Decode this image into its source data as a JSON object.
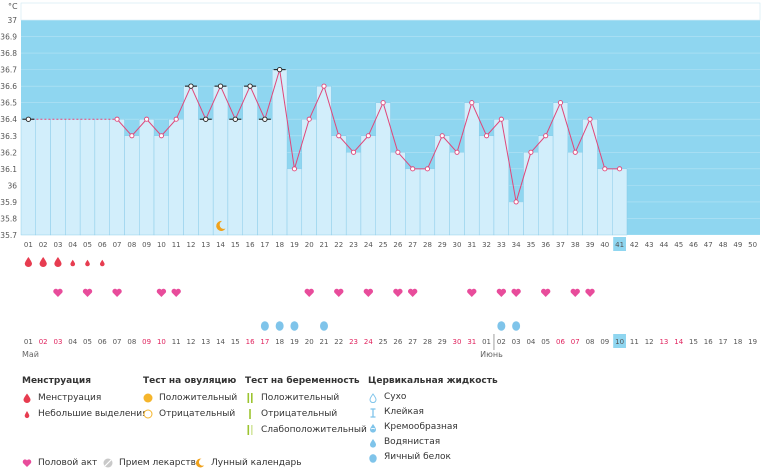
{
  "chart_data": {
    "type": "bar",
    "ylabel": "°C",
    "ylim": [
      35.7,
      37.0
    ],
    "y_ticks": [
      "35.7",
      "35.8",
      "35.9",
      "36",
      "36.1",
      "36.2",
      "36.3",
      "36.4",
      "36.5",
      "36.6",
      "36.7",
      "36.8",
      "36.9",
      "37"
    ],
    "cycle_days": [
      "01",
      "02",
      "03",
      "04",
      "05",
      "06",
      "07",
      "08",
      "09",
      "10",
      "11",
      "12",
      "13",
      "14",
      "15",
      "16",
      "17",
      "18",
      "19",
      "20",
      "21",
      "22",
      "23",
      "24",
      "25",
      "26",
      "27",
      "28",
      "29",
      "30",
      "31",
      "32",
      "33",
      "34",
      "35",
      "36",
      "37",
      "38",
      "39",
      "40",
      "41",
      "42",
      "43",
      "44",
      "45",
      "46",
      "47",
      "48",
      "49",
      "50"
    ],
    "current_cycle_day": "41",
    "temperatures": [
      36.4,
      null,
      null,
      null,
      null,
      null,
      36.4,
      36.3,
      36.4,
      36.3,
      36.4,
      36.6,
      36.4,
      36.6,
      36.4,
      36.6,
      36.4,
      36.7,
      36.1,
      36.4,
      36.6,
      36.3,
      36.2,
      36.3,
      36.5,
      36.2,
      36.1,
      36.1,
      36.3,
      36.2,
      36.5,
      36.3,
      36.4,
      35.9,
      36.2,
      36.3,
      36.5,
      36.2,
      36.4,
      36.1,
      36.1
    ],
    "cover_markers_days": [
      1,
      12,
      13,
      14,
      15,
      16,
      17,
      18
    ],
    "menstruation_days": [
      1,
      2,
      3
    ],
    "spotting_days": [
      4,
      5,
      6
    ],
    "intercourse_days": [
      3,
      5,
      7,
      10,
      11,
      20,
      22,
      24,
      26,
      27,
      31,
      33,
      34,
      36,
      38,
      39
    ],
    "egg_white_days": [
      17,
      18,
      19,
      21,
      33,
      34
    ],
    "lunar_day": 14,
    "calendar_dates": [
      "01",
      "02",
      "03",
      "04",
      "05",
      "06",
      "07",
      "08",
      "09",
      "10",
      "11",
      "12",
      "13",
      "14",
      "15",
      "16",
      "17",
      "18",
      "19",
      "20",
      "21",
      "22",
      "23",
      "24",
      "25",
      "26",
      "27",
      "28",
      "29",
      "30",
      "31",
      "01",
      "02",
      "03",
      "04",
      "05",
      "06",
      "07",
      "08",
      "09",
      "10",
      "11",
      "12",
      "13",
      "14",
      "15",
      "16",
      "17",
      "18",
      "19"
    ],
    "weekend_indices": [
      2,
      3,
      9,
      10,
      16,
      17,
      23,
      24,
      30,
      31,
      37,
      38,
      44,
      45
    ],
    "today_index": 41,
    "month_labels": [
      {
        "label": "Май",
        "start_index": 1
      },
      {
        "label": "Июнь",
        "start_index": 32
      }
    ]
  },
  "legend": {
    "groups": [
      {
        "title": "Менструация",
        "items": [
          {
            "label": "Менструация",
            "icon": "drop-large-icon"
          },
          {
            "label": "Небольшие выделения",
            "icon": "drop-small-icon"
          }
        ]
      },
      {
        "title": "Тест на овуляцию",
        "items": [
          {
            "label": "Положительный",
            "icon": "circle-filled-icon"
          },
          {
            "label": "Отрицательный",
            "icon": "circle-outline-icon"
          }
        ]
      },
      {
        "title": "Тест на беременность",
        "items": [
          {
            "label": "Положительный",
            "icon": "double-bar-icon"
          },
          {
            "label": "Отрицательный",
            "icon": "single-bar-icon"
          },
          {
            "label": "Слабоположительный",
            "icon": "faint-bar-icon"
          }
        ]
      },
      {
        "title": "Цервикальная жидкость",
        "items": [
          {
            "label": "Сухо",
            "icon": "dry-icon"
          },
          {
            "label": "Клейкая",
            "icon": "sticky-icon"
          },
          {
            "label": "Кремообразная",
            "icon": "creamy-icon"
          },
          {
            "label": "Водянистая",
            "icon": "watery-icon"
          },
          {
            "label": "Яичный белок",
            "icon": "egg-white-icon"
          }
        ]
      }
    ],
    "bottom": [
      {
        "label": "Половой акт",
        "icon": "heart-icon"
      },
      {
        "label": "Прием лекарств",
        "icon": "pill-icon"
      },
      {
        "label": "Лунный календарь",
        "icon": "moon-icon"
      }
    ]
  },
  "colors": {
    "band": "#8fd6f0",
    "bar": "#d2eefb",
    "bar_stroke": "#7ec6e6",
    "line": "#e0477a",
    "weekend": "#e0235e",
    "menstruation": "#e73c50",
    "heart": "#e84c9b",
    "fluid": "#7fc4ea",
    "today": "#8fd6f0",
    "moon": "#f0a21c",
    "positive": "#f5b52b",
    "test_bar": "#9cc430"
  }
}
